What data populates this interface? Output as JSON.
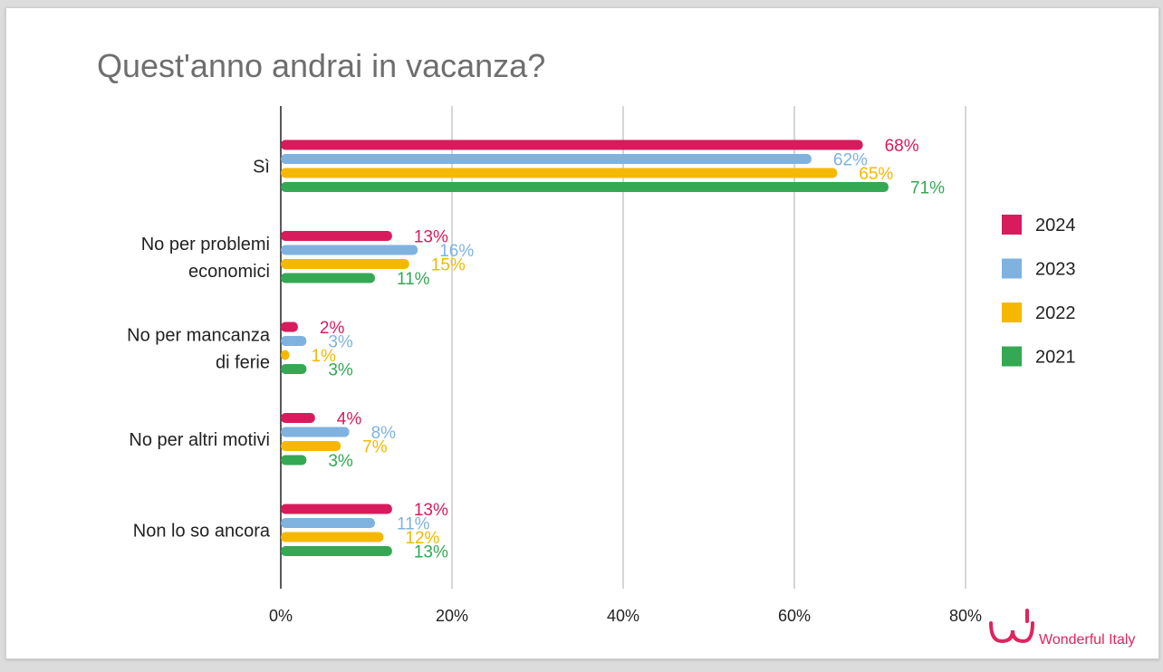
{
  "chart_data": {
    "type": "bar",
    "orientation": "horizontal",
    "title": "Quest'anno andrai in vacanza?",
    "categories": [
      "Sì",
      "No per problemi economici",
      "No per mancanza di ferie",
      "No per altri motivi",
      "Non lo so ancora"
    ],
    "category_lines": [
      [
        "Sì"
      ],
      [
        "No per problemi",
        "economici"
      ],
      [
        "No per mancanza",
        "di ferie"
      ],
      [
        "No per altri motivi"
      ],
      [
        "Non lo so ancora"
      ]
    ],
    "series": [
      {
        "name": "2024",
        "color": "#d81b5c",
        "values": [
          68,
          13,
          2,
          4,
          13
        ]
      },
      {
        "name": "2023",
        "color": "#7fb2df",
        "values": [
          62,
          16,
          3,
          8,
          11
        ]
      },
      {
        "name": "2022",
        "color": "#f5b800",
        "values": [
          65,
          15,
          1,
          7,
          12
        ]
      },
      {
        "name": "2021",
        "color": "#34a853",
        "values": [
          71,
          11,
          3,
          3,
          13
        ]
      }
    ],
    "value_suffix": "%",
    "xlim": [
      0,
      80
    ],
    "xticks": [
      0,
      20,
      40,
      60,
      80
    ],
    "tick_suffix": "%",
    "grid": true,
    "legend_position": "right"
  },
  "brand": {
    "name": "Wonderful Italy",
    "color": "#e0245e"
  }
}
